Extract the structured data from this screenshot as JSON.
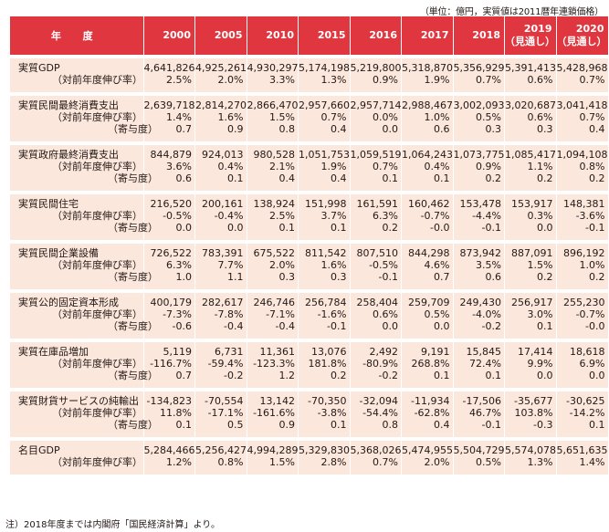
{
  "unit_note": "（単位：億円，実質値は2011暦年連鎖価格）",
  "header": {
    "label": "年 度",
    "years": [
      [
        "2000"
      ],
      [
        "2005"
      ],
      [
        "2010"
      ],
      [
        "2015"
      ],
      [
        "2016"
      ],
      [
        "2017"
      ],
      [
        "2018"
      ],
      [
        "2019",
        "（見通し）"
      ],
      [
        "2020",
        "（見通し）"
      ]
    ]
  },
  "groups": [
    {
      "rows": [
        {
          "label": "実質GDP",
          "level": 0,
          "values": [
            "4,641,826",
            "4,925,261",
            "4,930,297",
            "5,174,198",
            "5,219,800",
            "5,318,870",
            "5,356,929",
            "5,391,413",
            "5,428,968"
          ]
        },
        {
          "label": "（対前年度伸び率）",
          "level": 1,
          "values": [
            "2.5%",
            "2.0%",
            "3.3%",
            "1.3%",
            "0.9%",
            "1.9%",
            "0.7%",
            "0.6%",
            "0.7%"
          ]
        }
      ]
    },
    {
      "rows": [
        {
          "label": "実質民間最終消費支出",
          "level": 0,
          "values": [
            "2,639,718",
            "2,814,270",
            "2,866,470",
            "2,957,660",
            "2,957,714",
            "2,988,467",
            "3,002,093",
            "3,020,687",
            "3,041,418"
          ]
        },
        {
          "label": "（対前年度伸び率）",
          "level": 1,
          "values": [
            "1.4%",
            "1.6%",
            "1.5%",
            "0.7%",
            "0.0%",
            "1.0%",
            "0.5%",
            "0.6%",
            "0.7%"
          ]
        },
        {
          "label": "（寄与度）",
          "level": 2,
          "values": [
            "0.7",
            "0.9",
            "0.8",
            "0.4",
            "0.0",
            "0.6",
            "0.3",
            "0.3",
            "0.4"
          ]
        }
      ]
    },
    {
      "rows": [
        {
          "label": "実質政府最終消費支出",
          "level": 0,
          "values": [
            "844,879",
            "924,013",
            "980,528",
            "1,051,753",
            "1,059,519",
            "1,064,243",
            "1,073,775",
            "1,085,417",
            "1,094,108"
          ]
        },
        {
          "label": "（対前年度伸び率）",
          "level": 1,
          "values": [
            "3.6%",
            "0.4%",
            "2.1%",
            "1.9%",
            "0.7%",
            "0.4%",
            "0.9%",
            "1.1%",
            "0.8%"
          ]
        },
        {
          "label": "（寄与度）",
          "level": 2,
          "values": [
            "0.6",
            "0.1",
            "0.4",
            "0.4",
            "0.1",
            "0.1",
            "0.2",
            "0.2",
            "0.2"
          ]
        }
      ]
    },
    {
      "rows": [
        {
          "label": "実質民間住宅",
          "level": 0,
          "values": [
            "216,520",
            "200,161",
            "138,924",
            "151,998",
            "161,591",
            "160,462",
            "153,478",
            "153,917",
            "148,381"
          ]
        },
        {
          "label": "（対前年度伸び率）",
          "level": 1,
          "values": [
            "-0.5%",
            "-0.4%",
            "2.5%",
            "3.7%",
            "6.3%",
            "-0.7%",
            "-4.4%",
            "0.3%",
            "-3.6%"
          ]
        },
        {
          "label": "（寄与度）",
          "level": 2,
          "values": [
            "0.0",
            "0.0",
            "0.1",
            "0.1",
            "0.2",
            "-0.0",
            "-0.1",
            "0.0",
            "-0.1"
          ]
        }
      ]
    },
    {
      "rows": [
        {
          "label": "実質民間企業設備",
          "level": 0,
          "values": [
            "726,522",
            "783,391",
            "675,522",
            "811,542",
            "807,510",
            "844,298",
            "873,942",
            "887,091",
            "896,192"
          ]
        },
        {
          "label": "（対前年度伸び率）",
          "level": 1,
          "values": [
            "6.3%",
            "7.7%",
            "2.0%",
            "1.6%",
            "-0.5%",
            "4.6%",
            "3.5%",
            "1.5%",
            "1.0%"
          ]
        },
        {
          "label": "（寄与度）",
          "level": 2,
          "values": [
            "1.0",
            "1.1",
            "0.3",
            "0.3",
            "-0.1",
            "0.7",
            "0.6",
            "0.2",
            "0.2"
          ]
        }
      ]
    },
    {
      "rows": [
        {
          "label": "実質公的固定資本形成",
          "level": 0,
          "values": [
            "400,179",
            "282,617",
            "246,746",
            "256,784",
            "258,404",
            "259,709",
            "249,430",
            "256,917",
            "255,230"
          ]
        },
        {
          "label": "（対前年度伸び率）",
          "level": 1,
          "values": [
            "-7.3%",
            "-7.8%",
            "-7.1%",
            "-1.6%",
            "0.6%",
            "0.5%",
            "-4.0%",
            "3.0%",
            "-0.7%"
          ]
        },
        {
          "label": "（寄与度）",
          "level": 2,
          "values": [
            "-0.6",
            "-0.4",
            "-0.4",
            "-0.1",
            "0.0",
            "0.0",
            "-0.2",
            "0.1",
            "-0.0"
          ]
        }
      ]
    },
    {
      "rows": [
        {
          "label": "実質在庫品増加",
          "level": 0,
          "values": [
            "5,119",
            "6,731",
            "11,361",
            "13,076",
            "2,492",
            "9,191",
            "15,845",
            "17,414",
            "18,618"
          ]
        },
        {
          "label": "（対前年度伸び率）",
          "level": 1,
          "values": [
            "-116.7%",
            "-59.4%",
            "-123.3%",
            "181.8%",
            "-80.9%",
            "268.8%",
            "72.4%",
            "9.9%",
            "6.9%"
          ]
        },
        {
          "label": "（寄与度）",
          "level": 2,
          "values": [
            "0.7",
            "-0.2",
            "1.2",
            "0.2",
            "-0.2",
            "0.1",
            "0.1",
            "0.0",
            "0.0"
          ]
        }
      ]
    },
    {
      "rows": [
        {
          "label": "実質財貨サービスの純輸出",
          "level": 0,
          "values": [
            "-134,823",
            "-70,554",
            "13,142",
            "-70,350",
            "-32,094",
            "-11,934",
            "-17,506",
            "-35,677",
            "-30,625"
          ]
        },
        {
          "label": "（対前年度伸び率）",
          "level": 1,
          "values": [
            "11.8%",
            "-17.1%",
            "-161.6%",
            "-3.8%",
            "-54.4%",
            "-62.8%",
            "46.7%",
            "103.8%",
            "-14.2%"
          ]
        },
        {
          "label": "（寄与度）",
          "level": 2,
          "values": [
            "0.1",
            "0.5",
            "0.9",
            "0.1",
            "0.8",
            "0.4",
            "-0.1",
            "-0.3",
            "0.1"
          ]
        }
      ]
    },
    {
      "rows": [
        {
          "label": "名目GDP",
          "level": 0,
          "values": [
            "5,284,466",
            "5,256,427",
            "4,994,289",
            "5,329,830",
            "5,368,026",
            "5,474,955",
            "5,504,729",
            "5,574,078",
            "5,651,635"
          ]
        },
        {
          "label": "（対前年度伸び率）",
          "level": 1,
          "values": [
            "1.2%",
            "0.8%",
            "1.5%",
            "2.8%",
            "0.7%",
            "2.0%",
            "0.5%",
            "1.3%",
            "1.4%"
          ]
        }
      ]
    }
  ],
  "footnote": "注）2018年度までは内閣府「国民経済計算」より。",
  "colors": {
    "header_bg": "#e0363f",
    "row_bg": "#fbe7dc",
    "text": "#231815"
  }
}
